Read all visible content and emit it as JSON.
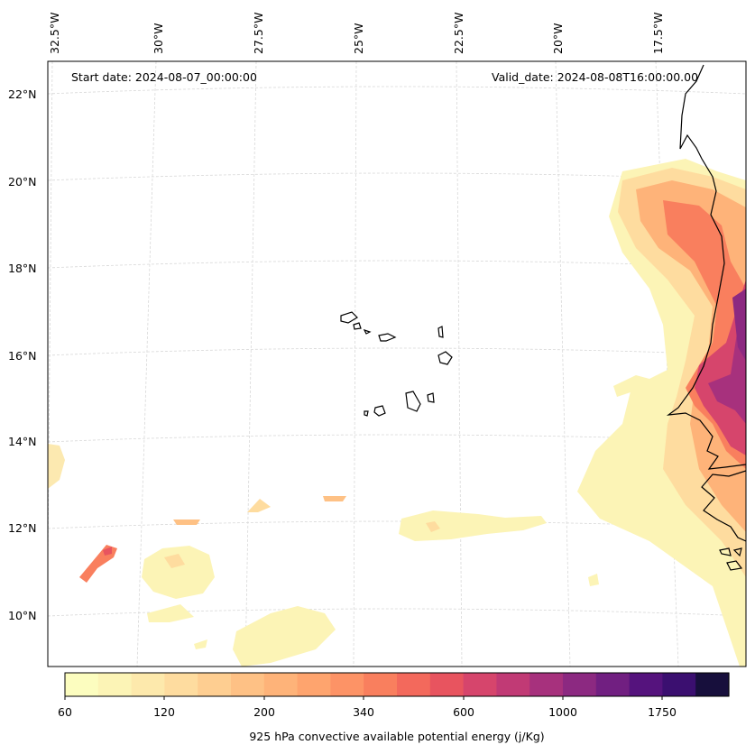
{
  "map": {
    "start_date": "Start date: 2024-08-07_00:00:00",
    "valid_date": "Valid_date: 2024-08-08T16:00:00.00",
    "lat_labels": [
      "22°N",
      "20°N",
      "18°N",
      "16°N",
      "14°N",
      "12°N",
      "10°N"
    ],
    "lon_labels": [
      "32.5°W",
      "30°W",
      "27.5°W",
      "25°W",
      "22.5°W",
      "20°W",
      "17.5°W"
    ],
    "coastline_color": "#000000"
  },
  "colorbar": {
    "title": "925 hPa convective available potential energy (j/Kg)",
    "tick_labels": [
      "60",
      "120",
      "200",
      "340",
      "600",
      "1000",
      "1750"
    ],
    "colors": [
      "#fcfdbf",
      "#fcf4b6",
      "#fde9ac",
      "#fedc9f",
      "#fece91",
      "#fec185",
      "#feb379",
      "#fea46e",
      "#fd9366",
      "#f97f5e",
      "#f3695c",
      "#e8545f",
      "#d6456c",
      "#c13a75",
      "#a7317d",
      "#8c2981",
      "#711f81",
      "#55137d",
      "#3b0f70",
      "#170f3c"
    ]
  }
}
